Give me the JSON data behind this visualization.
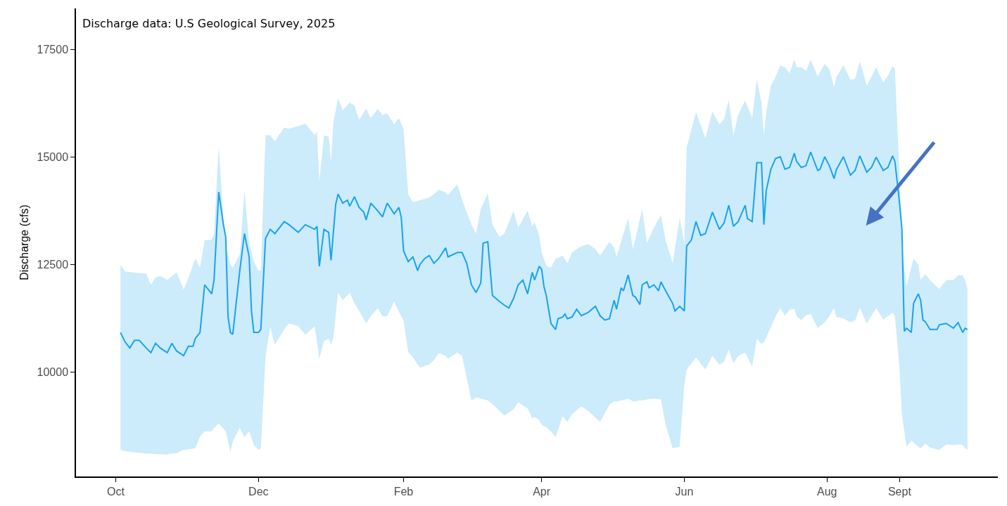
{
  "chart_data": {
    "type": "line",
    "ylabel": "Discharge (cfs)",
    "annotations": [
      "Discharge data: U.S Geological Survey, 2025"
    ],
    "xlim": [
      "2024-09-14",
      "2025-10-13"
    ],
    "ylim": [
      7570,
      18460
    ],
    "xticks": [
      {
        "value": "2024-10-01",
        "label": "Oct"
      },
      {
        "value": "2024-12-01",
        "label": "Dec"
      },
      {
        "value": "2025-02-01",
        "label": "Feb"
      },
      {
        "value": "2025-04-01",
        "label": "Apr"
      },
      {
        "value": "2025-06-01",
        "label": "Jun"
      },
      {
        "value": "2025-08-01",
        "label": "Aug"
      },
      {
        "value": "2025-09-01",
        "label": "Sept"
      }
    ],
    "yticks": [
      10000,
      12500,
      15000,
      17500
    ],
    "series": [
      {
        "color": "#19a3ee",
        "x": [
          "2024-10-03",
          "2024-10-05",
          "2024-10-07",
          "2024-10-09",
          "2024-10-11",
          "2024-10-14",
          "2024-10-16",
          "2024-10-18",
          "2024-10-20",
          "2024-10-23",
          "2024-10-25",
          "2024-10-27",
          "2024-10-30",
          "2024-11-01",
          "2024-11-03",
          "2024-11-04",
          "2024-11-06",
          "2024-11-08",
          "2024-11-11",
          "2024-11-12",
          "2024-11-14",
          "2024-11-16",
          "2024-11-17",
          "2024-11-18",
          "2024-11-19",
          "2024-11-20",
          "2024-11-23",
          "2024-11-25",
          "2024-11-27",
          "2024-11-28",
          "2024-11-29",
          "2024-12-01",
          "2024-12-02",
          "2024-12-04",
          "2024-12-06",
          "2024-12-08",
          "2024-12-12",
          "2024-12-14",
          "2024-12-18",
          "2024-12-21",
          "2024-12-25",
          "2024-12-26",
          "2024-12-27",
          "2024-12-29",
          "2024-12-31",
          "2025-01-01",
          "2025-01-02",
          "2025-01-03",
          "2025-01-04",
          "2025-01-06",
          "2025-01-08",
          "2025-01-09",
          "2025-01-11",
          "2025-01-13",
          "2025-01-15",
          "2025-01-16",
          "2025-01-18",
          "2025-01-21",
          "2025-01-23",
          "2025-01-25",
          "2025-01-28",
          "2025-01-30",
          "2025-01-31",
          "2025-02-01",
          "2025-02-03",
          "2025-02-05",
          "2025-02-07",
          "2025-02-08",
          "2025-02-10",
          "2025-02-12",
          "2025-02-14",
          "2025-02-16",
          "2025-02-19",
          "2025-02-20",
          "2025-02-24",
          "2025-02-26",
          "2025-02-28",
          "2025-03-02",
          "2025-03-04",
          "2025-03-06",
          "2025-03-07",
          "2025-03-09",
          "2025-03-11",
          "2025-03-14",
          "2025-03-16",
          "2025-03-18",
          "2025-03-20",
          "2025-03-22",
          "2025-03-24",
          "2025-03-26",
          "2025-03-28",
          "2025-03-29",
          "2025-03-31",
          "2025-04-01",
          "2025-04-02",
          "2025-04-03",
          "2025-04-05",
          "2025-04-07",
          "2025-04-08",
          "2025-04-10",
          "2025-04-11",
          "2025-04-12",
          "2025-04-14",
          "2025-04-16",
          "2025-04-18",
          "2025-04-21",
          "2025-04-24",
          "2025-04-26",
          "2025-04-28",
          "2025-04-30",
          "2025-05-02",
          "2025-05-03",
          "2025-05-05",
          "2025-05-06",
          "2025-05-08",
          "2025-05-10",
          "2025-05-11",
          "2025-05-13",
          "2025-05-14",
          "2025-05-16",
          "2025-05-17",
          "2025-05-19",
          "2025-05-21",
          "2025-05-22",
          "2025-05-24",
          "2025-05-27",
          "2025-05-28",
          "2025-05-30",
          "2025-06-01",
          "2025-06-02",
          "2025-06-04",
          "2025-06-06",
          "2025-06-08",
          "2025-06-10",
          "2025-06-13",
          "2025-06-16",
          "2025-06-18",
          "2025-06-20",
          "2025-06-22",
          "2025-06-24",
          "2025-06-27",
          "2025-06-28",
          "2025-06-30",
          "2025-07-02",
          "2025-07-04",
          "2025-07-05",
          "2025-07-06",
          "2025-07-08",
          "2025-07-10",
          "2025-07-12",
          "2025-07-14",
          "2025-07-16",
          "2025-07-18",
          "2025-07-19",
          "2025-07-21",
          "2025-07-23",
          "2025-07-25",
          "2025-07-28",
          "2025-07-29",
          "2025-07-31",
          "2025-08-02",
          "2025-08-04",
          "2025-08-05",
          "2025-08-08",
          "2025-08-11",
          "2025-08-13",
          "2025-08-15",
          "2025-08-16",
          "2025-08-18",
          "2025-08-20",
          "2025-08-22",
          "2025-08-25",
          "2025-08-27",
          "2025-08-29",
          "2025-08-30",
          "2025-09-01",
          "2025-09-02",
          "2025-09-03",
          "2025-09-04",
          "2025-09-06",
          "2025-09-07",
          "2025-09-09",
          "2025-09-10",
          "2025-09-11",
          "2025-09-12",
          "2025-09-14",
          "2025-09-17",
          "2025-09-18",
          "2025-09-21",
          "2025-09-24",
          "2025-09-26",
          "2025-09-28",
          "2025-09-29",
          "2025-09-30"
        ],
        "values": [
          10920,
          10700,
          10560,
          10740,
          10740,
          10560,
          10450,
          10670,
          10560,
          10450,
          10670,
          10490,
          10380,
          10600,
          10600,
          10780,
          10920,
          12030,
          11820,
          12140,
          14190,
          13430,
          13140,
          11280,
          10920,
          10880,
          12360,
          13220,
          12680,
          11420,
          10920,
          10920,
          10990,
          13110,
          13320,
          13220,
          13500,
          13430,
          13250,
          13430,
          13320,
          13390,
          12460,
          13320,
          13250,
          12600,
          13250,
          13900,
          14140,
          13930,
          14000,
          13860,
          14080,
          13830,
          13720,
          13540,
          13930,
          13750,
          13610,
          13930,
          13680,
          13830,
          13610,
          12820,
          12570,
          12680,
          12360,
          12500,
          12640,
          12710,
          12530,
          12640,
          12890,
          12680,
          12780,
          12780,
          12530,
          12030,
          11850,
          12070,
          13000,
          13030,
          11780,
          11640,
          11560,
          11490,
          11710,
          12030,
          12140,
          11820,
          12320,
          12140,
          12460,
          12390,
          11990,
          11780,
          11130,
          10990,
          11240,
          11280,
          11350,
          11240,
          11280,
          11460,
          11310,
          11390,
          11530,
          11310,
          11210,
          11240,
          11670,
          11460,
          11960,
          11890,
          12260,
          11780,
          11750,
          11570,
          12030,
          12100,
          11960,
          12030,
          11890,
          12100,
          11890,
          11600,
          11420,
          11530,
          11420,
          12930,
          13070,
          13500,
          13180,
          13220,
          13720,
          13320,
          13470,
          13880,
          13390,
          13500,
          13880,
          13570,
          13500,
          14870,
          14870,
          13430,
          14220,
          14720,
          14970,
          15010,
          14720,
          14760,
          15090,
          14900,
          14760,
          14800,
          15120,
          14690,
          14720,
          15010,
          14800,
          14500,
          14710,
          15010,
          14580,
          14690,
          15030,
          14900,
          14650,
          14760,
          15000,
          14690,
          14760,
          15030,
          14900,
          13930,
          13320,
          10950,
          11020,
          10920,
          11600,
          11820,
          11670,
          11210,
          11170,
          10990,
          10990,
          11100,
          11130,
          11020,
          11150,
          10920,
          11020,
          10990
        ],
        "lower": [
          8190,
          8160,
          8140,
          8130,
          8120,
          8100,
          8100,
          8090,
          8090,
          8080,
          8100,
          8110,
          8190,
          8200,
          8220,
          8230,
          8500,
          8620,
          8620,
          8700,
          8800,
          8680,
          8620,
          8380,
          8150,
          8380,
          8710,
          8480,
          8620,
          8460,
          8310,
          8190,
          8230,
          10350,
          11060,
          10630,
          11000,
          11130,
          11070,
          10870,
          11060,
          10700,
          10310,
          10720,
          10780,
          10630,
          10800,
          11320,
          11850,
          11670,
          11790,
          11850,
          11600,
          11420,
          11230,
          11130,
          11300,
          11490,
          11300,
          11300,
          11640,
          11400,
          11300,
          11200,
          10460,
          10340,
          10180,
          10100,
          10140,
          10180,
          10280,
          10440,
          10380,
          10310,
          10450,
          10380,
          9860,
          9340,
          9410,
          9380,
          9370,
          9340,
          9250,
          9100,
          8990,
          9060,
          9130,
          9300,
          9220,
          9150,
          8930,
          8960,
          8880,
          8770,
          8740,
          8720,
          8620,
          8480,
          8650,
          8980,
          8910,
          8840,
          9020,
          9110,
          9200,
          9090,
          8940,
          8840,
          9040,
          9240,
          9320,
          9310,
          9340,
          9350,
          9380,
          9320,
          9320,
          9340,
          9340,
          9360,
          9370,
          9380,
          9370,
          9370,
          8770,
          8230,
          8240,
          8260,
          9700,
          10060,
          10200,
          10340,
          10200,
          10060,
          10380,
          10170,
          10240,
          10520,
          10200,
          10380,
          10450,
          10340,
          10130,
          10780,
          10650,
          10700,
          10800,
          11050,
          11300,
          11490,
          11310,
          11450,
          11470,
          11300,
          11210,
          11320,
          11350,
          11020,
          11070,
          11160,
          11300,
          11490,
          11280,
          11250,
          11160,
          11200,
          11490,
          11370,
          11130,
          11310,
          11490,
          11220,
          11300,
          11380,
          11300,
          10060,
          9000,
          8630,
          8260,
          8410,
          8360,
          8260,
          8230,
          8280,
          8340,
          8250,
          8200,
          8190,
          8320,
          8300,
          8320,
          8300,
          8230,
          8190
        ],
        "upper": [
          12500,
          12340,
          12330,
          12310,
          12300,
          12290,
          12030,
          12200,
          12240,
          12140,
          12230,
          12320,
          11920,
          12180,
          12490,
          12640,
          12430,
          13070,
          13080,
          13220,
          15260,
          13580,
          12930,
          12720,
          12500,
          12430,
          12740,
          14230,
          13000,
          12790,
          12570,
          12360,
          12360,
          15510,
          15510,
          15370,
          15690,
          15660,
          15720,
          15780,
          15510,
          15590,
          14440,
          15510,
          15480,
          14900,
          15800,
          16080,
          16370,
          16090,
          16210,
          16270,
          16200,
          15870,
          16040,
          16120,
          15910,
          16120,
          15980,
          16020,
          15760,
          15910,
          15780,
          15660,
          14130,
          13950,
          13980,
          14000,
          14030,
          14060,
          14140,
          14240,
          14180,
          14120,
          14370,
          14000,
          13720,
          13430,
          13220,
          13790,
          13910,
          14150,
          13430,
          13140,
          13220,
          13480,
          13750,
          13360,
          13560,
          13750,
          13390,
          13480,
          13180,
          12780,
          12630,
          12470,
          12430,
          12640,
          12660,
          12710,
          12620,
          12530,
          12780,
          12860,
          12930,
          12980,
          12860,
          12710,
          12870,
          13030,
          12900,
          12680,
          13040,
          13220,
          13580,
          12850,
          13080,
          13560,
          13790,
          13000,
          13120,
          13360,
          13550,
          13650,
          13070,
          12530,
          12880,
          13580,
          13000,
          15220,
          15640,
          16050,
          15740,
          15440,
          16060,
          15760,
          15890,
          16340,
          15510,
          15980,
          16320,
          16180,
          15910,
          16810,
          16260,
          15510,
          16050,
          16660,
          16870,
          17130,
          17090,
          16950,
          17270,
          17090,
          17090,
          17010,
          17270,
          16880,
          16980,
          17170,
          17050,
          16620,
          16860,
          17140,
          16800,
          16820,
          17230,
          17040,
          16660,
          16880,
          17090,
          16740,
          16890,
          17110,
          17060,
          14530,
          12860,
          12430,
          12000,
          12430,
          12640,
          12500,
          12140,
          12210,
          12280,
          12140,
          11980,
          11930,
          12140,
          12140,
          12250,
          12250,
          12140,
          11930
        ]
      }
    ]
  }
}
